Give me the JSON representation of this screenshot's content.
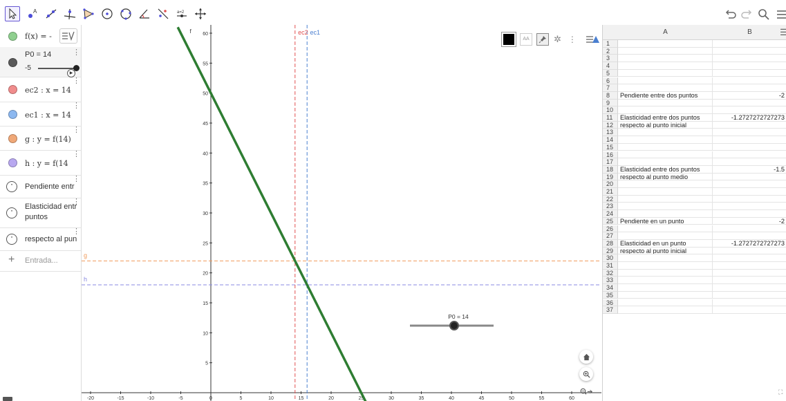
{
  "toolbar": {
    "tools": [
      "move-tool",
      "point-tool",
      "line-tool",
      "perpendicular-tool",
      "polygon-tool",
      "circle-tool",
      "circle-three-points-tool",
      "angle-tool",
      "reflect-tool",
      "slider-tool",
      "move-graphics-tool"
    ],
    "slider_tool_label": "a=2"
  },
  "algebra": {
    "f_label": "f(x) = -",
    "p0_label": "P0 = 14",
    "p0_min": "-5",
    "ec2_label": "ec2 : x = 14",
    "ec1_label": "ec1 : x = 14",
    "g_label": "g : y = f(14)",
    "h_label": "h : y = f(14",
    "text1": "Pendiente entr",
    "text2_line1": "Elasticidad entr",
    "text2_line2": "puntos",
    "text3": "respecto al pun",
    "input_placeholder": "Entrada...",
    "colors": {
      "f": "#8fcf8f",
      "p0": "#5a5a5a",
      "ec2": "#f08c8c",
      "ec1": "#8cb8f0",
      "g": "#f0a878",
      "h": "#b8a8f0"
    }
  },
  "graphics": {
    "x_ticks": [
      "-20",
      "-15",
      "-10",
      "-5",
      "0",
      "5",
      "10",
      "15",
      "20",
      "25",
      "30",
      "35",
      "40",
      "45",
      "50",
      "55",
      "60"
    ],
    "y_ticks": [
      "5",
      "10",
      "15",
      "20",
      "25",
      "30",
      "35",
      "40",
      "45",
      "50",
      "55",
      "60"
    ],
    "line_label_f": "f",
    "line_label_ec2": "ec2",
    "line_label_ec1": "ec1",
    "line_label_g": "g",
    "line_label_h": "h",
    "slider_label": "P0 = 14",
    "style_bar_aa": "AA",
    "colors": {
      "f": "#2e7d32",
      "ec2": "#e05050",
      "ec1": "#4a7fd0",
      "g": "#f09a5a",
      "h": "#8a8ae0"
    }
  },
  "spreadsheet": {
    "columns": [
      "A",
      "B"
    ],
    "rows": [
      {
        "n": "1",
        "a": "",
        "b": ""
      },
      {
        "n": "2",
        "a": "",
        "b": ""
      },
      {
        "n": "3",
        "a": "",
        "b": ""
      },
      {
        "n": "4",
        "a": "",
        "b": ""
      },
      {
        "n": "5",
        "a": "",
        "b": ""
      },
      {
        "n": "6",
        "a": "",
        "b": ""
      },
      {
        "n": "7",
        "a": "",
        "b": ""
      },
      {
        "n": "8",
        "a": "Pendiente entre dos puntos",
        "b": "-2"
      },
      {
        "n": "9",
        "a": "",
        "b": ""
      },
      {
        "n": "10",
        "a": "",
        "b": ""
      },
      {
        "n": "11",
        "a": "Elasticidad entre dos puntos",
        "b": "-1.2727272727273"
      },
      {
        "n": "12",
        "a": "respecto al punto inicial",
        "b": ""
      },
      {
        "n": "13",
        "a": "",
        "b": ""
      },
      {
        "n": "14",
        "a": "",
        "b": ""
      },
      {
        "n": "15",
        "a": "",
        "b": ""
      },
      {
        "n": "16",
        "a": "",
        "b": ""
      },
      {
        "n": "17",
        "a": "",
        "b": ""
      },
      {
        "n": "18",
        "a": "Elasticidad entre dos puntos",
        "b": "-1.5"
      },
      {
        "n": "19",
        "a": "respecto al punto medio",
        "b": ""
      },
      {
        "n": "20",
        "a": "",
        "b": ""
      },
      {
        "n": "21",
        "a": "",
        "b": ""
      },
      {
        "n": "22",
        "a": "",
        "b": ""
      },
      {
        "n": "23",
        "a": "",
        "b": ""
      },
      {
        "n": "24",
        "a": "",
        "b": ""
      },
      {
        "n": "25",
        "a": "Pendiente en un punto",
        "b": "-2"
      },
      {
        "n": "26",
        "a": "",
        "b": ""
      },
      {
        "n": "27",
        "a": "",
        "b": ""
      },
      {
        "n": "28",
        "a": "Elasticidad en un punto",
        "b": "-1.2727272727273"
      },
      {
        "n": "29",
        "a": "respecto al punto inicial",
        "b": ""
      },
      {
        "n": "30",
        "a": "",
        "b": ""
      },
      {
        "n": "31",
        "a": "",
        "b": ""
      },
      {
        "n": "32",
        "a": "",
        "b": ""
      },
      {
        "n": "33",
        "a": "",
        "b": ""
      },
      {
        "n": "34",
        "a": "",
        "b": ""
      },
      {
        "n": "35",
        "a": "",
        "b": ""
      },
      {
        "n": "36",
        "a": "",
        "b": ""
      },
      {
        "n": "37",
        "a": "",
        "b": ""
      }
    ]
  }
}
